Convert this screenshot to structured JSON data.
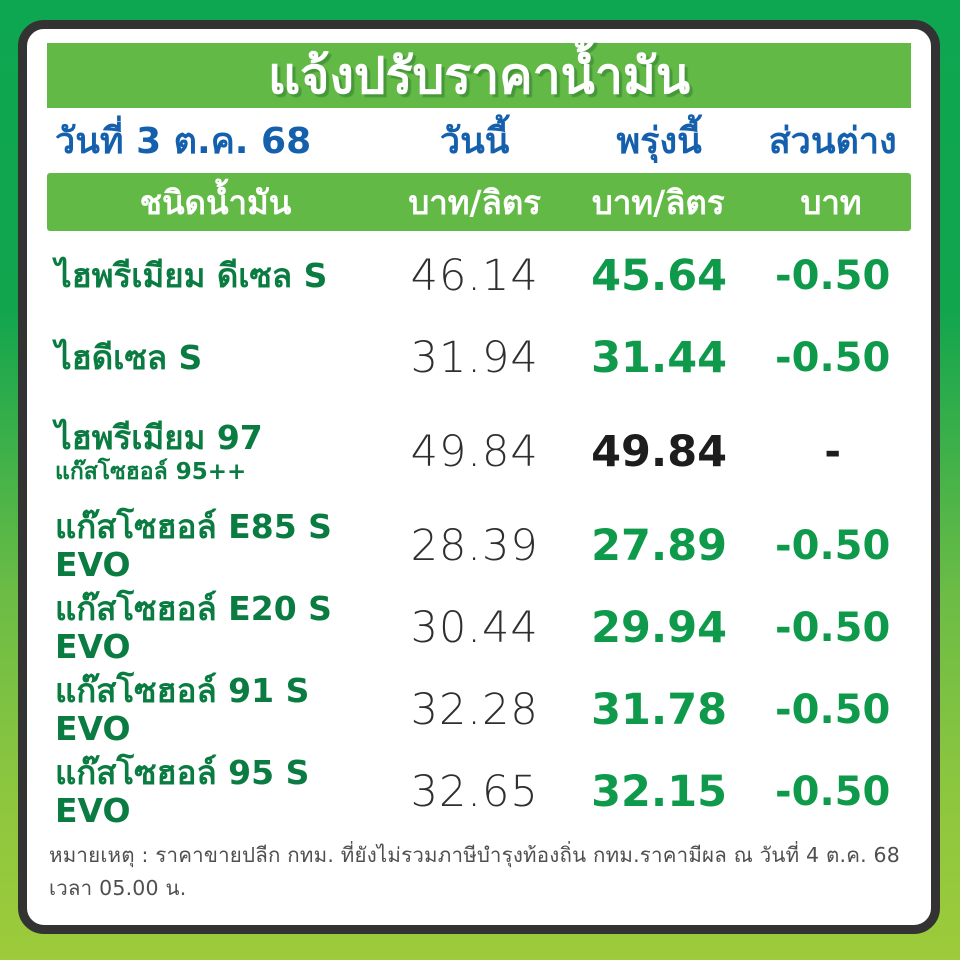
{
  "title": "แจ้งปรับราคาน้ำมัน",
  "date_header": {
    "date_label": "วันที่ 3 ต.ค. 68",
    "today_label": "วันนี้",
    "tomorrow_label": "พรุ่งนี้",
    "difference_label": "ส่วนต่าง"
  },
  "subheader": {
    "fuel_type_label": "ชนิดน้ำมัน",
    "today_unit": "บาท/ลิตร",
    "tomorrow_unit": "บาท/ลิตร",
    "diff_unit": "บาท"
  },
  "rows": [
    {
      "name": "ไฮพรีเมียม ดีเซล S",
      "today": "46.14",
      "tomorrow": "45.64",
      "diff": "-0.50"
    },
    {
      "name": "ไฮดีเซล S",
      "today": "31.94",
      "tomorrow": "31.44",
      "diff": "-0.50"
    },
    {
      "name": "ไฮพรีเมียม 97",
      "sub": "แก๊สโซฮอล์ 95++",
      "today": "49.84",
      "tomorrow": "49.84",
      "diff": "-"
    },
    {
      "name": "แก๊สโซฮอล์ E85 S EVO",
      "today": "28.39",
      "tomorrow": "27.89",
      "diff": "-0.50"
    },
    {
      "name": "แก๊สโซฮอล์ E20 S EVO",
      "today": "30.44",
      "tomorrow": "29.94",
      "diff": "-0.50"
    },
    {
      "name": "แก๊สโซฮอล์ 91 S EVO",
      "today": "32.28",
      "tomorrow": "31.78",
      "diff": "-0.50"
    },
    {
      "name": "แก๊สโซฮอล์ 95 S EVO",
      "today": "32.65",
      "tomorrow": "32.15",
      "diff": "-0.50"
    }
  ],
  "footnote": "หมายเหตุ :  ราคาขายปลีก กทม. ที่ยังไม่รวมภาษีบำรุงท้องถิ่น  กทม.ราคามีผล ณ วันที่ 4 ต.ค. 68 เวลา 05.00 น.",
  "colors": {
    "banner_green": "#62b946",
    "frame_gradient_top": "#0ea751",
    "frame_gradient_bottom": "#9dcb3a",
    "header_blue": "#1560ac",
    "fuel_name_green": "#0a7c42",
    "price_green": "#0f9a4b",
    "price_black": "#1d1d1d",
    "card_border": "#333333"
  },
  "chart_data": {
    "type": "table",
    "title": "แจ้งปรับราคาน้ำมัน",
    "date": "วันที่ 3 ต.ค. 68",
    "effective": "กทม.ราคามีผล ณ วันที่ 4 ต.ค. 68 เวลา 05.00 น.",
    "columns": [
      "ชนิดน้ำมัน",
      "วันนี้ (บาท/ลิตร)",
      "พรุ่งนี้ (บาท/ลิตร)",
      "ส่วนต่าง (บาท)"
    ],
    "rows": [
      [
        "ไฮพรีเมียม ดีเซล S",
        46.14,
        45.64,
        -0.5
      ],
      [
        "ไฮดีเซล S",
        31.94,
        31.44,
        -0.5
      ],
      [
        "ไฮพรีเมียม 97 (แก๊สโซฮอล์ 95++)",
        49.84,
        49.84,
        null
      ],
      [
        "แก๊สโซฮอล์ E85 S EVO",
        28.39,
        27.89,
        -0.5
      ],
      [
        "แก๊สโซฮอล์ E20 S EVO",
        30.44,
        29.94,
        -0.5
      ],
      [
        "แก๊สโซฮอล์ 91 S EVO",
        32.28,
        31.78,
        -0.5
      ],
      [
        "แก๊สโซฮอล์ 95 S EVO",
        32.65,
        32.15,
        -0.5
      ]
    ]
  }
}
